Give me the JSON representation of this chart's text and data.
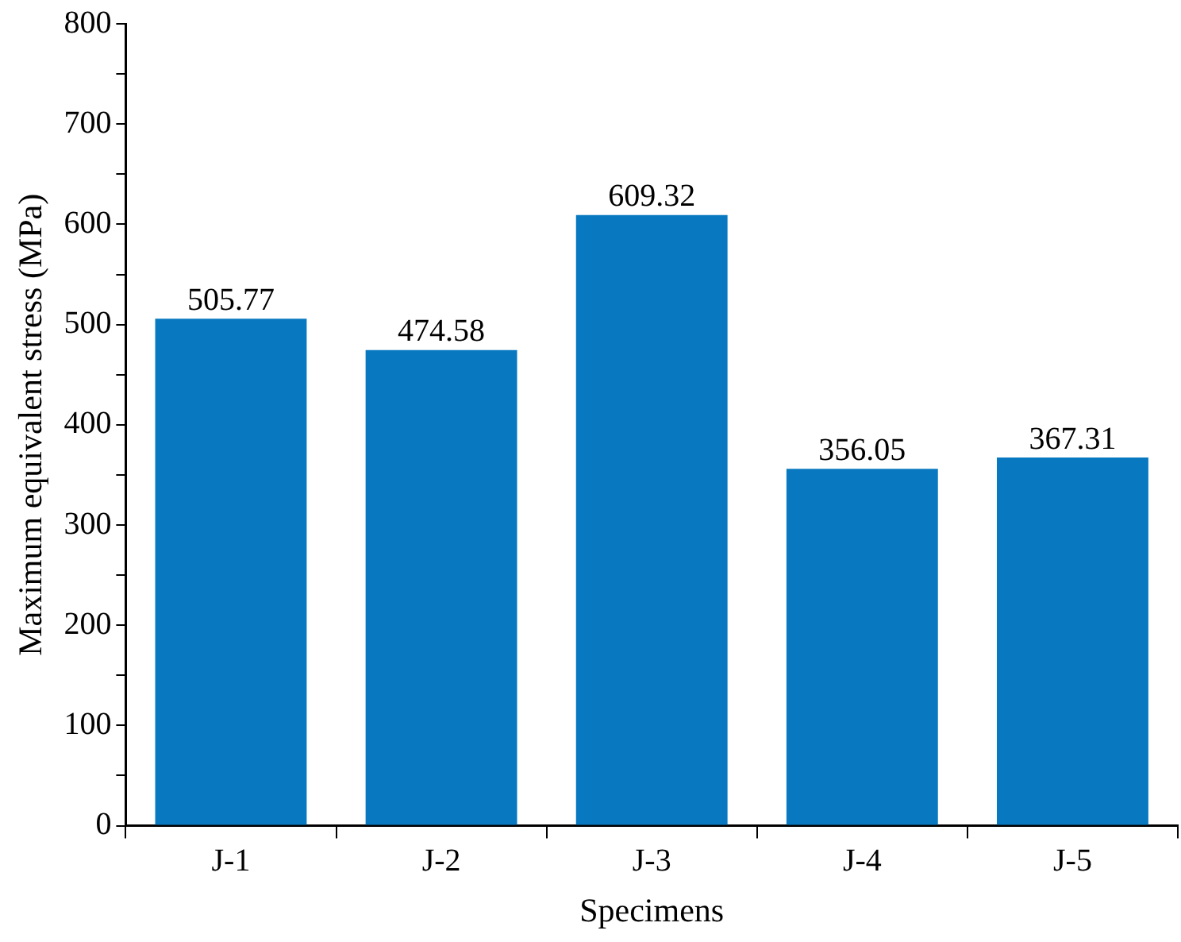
{
  "chart_data": {
    "type": "bar",
    "xlabel": "Specimens",
    "ylabel": "Maximum equivalent stress (MPa)",
    "categories": [
      "J-1",
      "J-2",
      "J-3",
      "J-4",
      "J-5"
    ],
    "values": [
      505.77,
      474.58,
      609.32,
      356.05,
      367.31
    ],
    "color": "#0879c0",
    "ylim": [
      0,
      800
    ],
    "yticks": [
      0,
      {
        "value": 50,
        "label": null
      },
      100,
      {
        "value": 150,
        "label": null
      },
      200,
      {
        "value": 250,
        "label": null
      },
      300,
      {
        "value": 350,
        "label": null
      },
      400,
      {
        "value": 450,
        "label": null
      },
      500,
      {
        "value": 550,
        "label": null
      },
      600,
      {
        "value": 650,
        "label": null
      },
      700,
      {
        "value": 750,
        "label": null
      },
      800
    ],
    "grid": false,
    "data_labels": true
  }
}
